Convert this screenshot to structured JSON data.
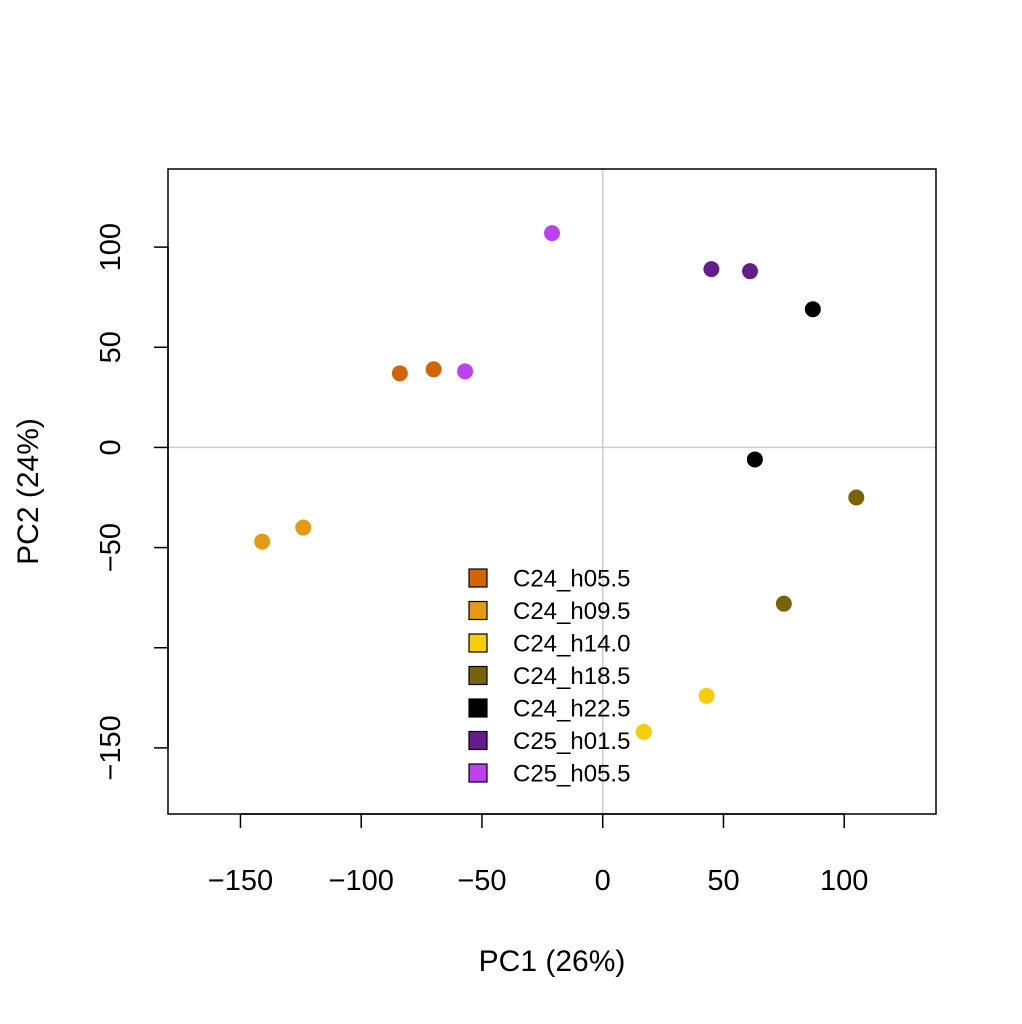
{
  "chart_data": {
    "type": "scatter",
    "xlabel": "PC1 (26%)",
    "ylabel": "PC2 (24%)",
    "xlim": [
      -180,
      138
    ],
    "ylim": [
      -183,
      139
    ],
    "x_ticks": [
      -150,
      -100,
      -50,
      0,
      50,
      100
    ],
    "x_tick_labels": [
      "−150",
      "−100",
      "−50",
      "0",
      "50",
      "100"
    ],
    "y_ticks": [
      -150,
      -100,
      -50,
      0,
      50,
      100
    ],
    "y_tick_labels": [
      "−150",
      "",
      "−50",
      "0",
      "50",
      "100"
    ],
    "reference_lines": {
      "x": 0,
      "y": 0
    },
    "legend_position": "bottom-center",
    "series": [
      {
        "name": "C24_h05.5",
        "color": "#D2640A",
        "points": [
          [
            -84,
            37
          ],
          [
            -70,
            39
          ]
        ]
      },
      {
        "name": "C24_h09.5",
        "color": "#E69A14",
        "points": [
          [
            -141,
            -47
          ],
          [
            -124,
            -40
          ]
        ]
      },
      {
        "name": "C24_h14.0",
        "color": "#F5CD0A",
        "points": [
          [
            43,
            -124
          ],
          [
            17,
            -142
          ]
        ]
      },
      {
        "name": "C24_h18.5",
        "color": "#786406",
        "points": [
          [
            105,
            -25
          ],
          [
            75,
            -78
          ]
        ]
      },
      {
        "name": "C24_h22.5",
        "color": "#000000",
        "points": [
          [
            87,
            69
          ],
          [
            63,
            -6
          ]
        ]
      },
      {
        "name": "C25_h01.5",
        "color": "#641E8C",
        "points": [
          [
            45,
            89
          ],
          [
            61,
            88
          ]
        ]
      },
      {
        "name": "C25_h05.5",
        "color": "#BE41F0",
        "points": [
          [
            -21,
            107
          ],
          [
            -57,
            38
          ]
        ]
      }
    ]
  }
}
